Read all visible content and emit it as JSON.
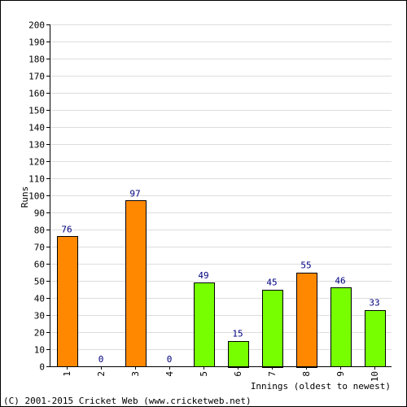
{
  "chart_data": {
    "type": "bar",
    "xlabel": "Innings (oldest to newest)",
    "ylabel": "Runs",
    "ylim": [
      0,
      200
    ],
    "ytick_step": 10,
    "grid": true,
    "categories": [
      "1",
      "2",
      "3",
      "4",
      "5",
      "6",
      "7",
      "8",
      "9",
      "10"
    ],
    "values": [
      76,
      0,
      97,
      0,
      49,
      15,
      45,
      55,
      46,
      33
    ],
    "bar_colors": [
      "#ff8800",
      "#ff8800",
      "#ff8800",
      "#ff8800",
      "#77ff00",
      "#77ff00",
      "#77ff00",
      "#ff8800",
      "#77ff00",
      "#77ff00"
    ],
    "value_label_color": "#000080",
    "grid_color": "#dddddd"
  },
  "footer": {
    "copyright": "(C) 2001-2015 Cricket Web (www.cricketweb.net)"
  }
}
